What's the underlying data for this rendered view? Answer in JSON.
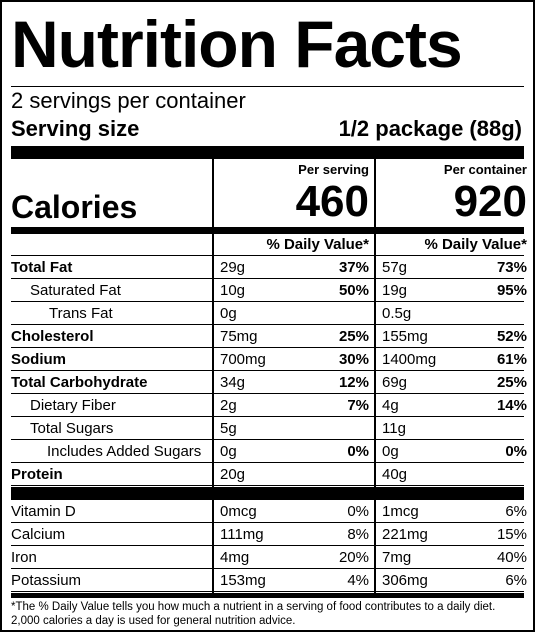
{
  "title": "Nutrition Facts",
  "servings_per_container": "2 servings per container",
  "serving_size_label": "Serving size",
  "serving_size_value": "1/2 package (88g)",
  "column_headers": {
    "per_serving": "Per serving",
    "per_container": "Per container"
  },
  "calories": {
    "label": "Calories",
    "per_serving": "460",
    "per_container": "920"
  },
  "daily_value_header": "% Daily Value*",
  "nutrients": [
    {
      "name": "Total Fat",
      "bold": true,
      "indent": 0,
      "serving_amount": "29g",
      "serving_dv": "37%",
      "container_amount": "57g",
      "container_dv": "73%"
    },
    {
      "name": "Saturated Fat",
      "bold": false,
      "indent": 1,
      "serving_amount": "10g",
      "serving_dv": "50%",
      "container_amount": "19g",
      "container_dv": "95%"
    },
    {
      "name": "Trans Fat",
      "bold": false,
      "indent": 2,
      "serving_amount": "0g",
      "serving_dv": "",
      "container_amount": "0.5g",
      "container_dv": ""
    },
    {
      "name": "Cholesterol",
      "bold": true,
      "indent": 0,
      "serving_amount": "75mg",
      "serving_dv": "25%",
      "container_amount": "155mg",
      "container_dv": "52%"
    },
    {
      "name": "Sodium",
      "bold": true,
      "indent": 0,
      "serving_amount": "700mg",
      "serving_dv": "30%",
      "container_amount": "1400mg",
      "container_dv": "61%"
    },
    {
      "name": "Total Carbohydrate",
      "bold": true,
      "indent": 0,
      "serving_amount": "34g",
      "serving_dv": "12%",
      "container_amount": "69g",
      "container_dv": "25%"
    },
    {
      "name": "Dietary Fiber",
      "bold": false,
      "indent": 1,
      "serving_amount": "2g",
      "serving_dv": "7%",
      "container_amount": "4g",
      "container_dv": "14%"
    },
    {
      "name": "Total Sugars",
      "bold": false,
      "indent": 1,
      "serving_amount": "5g",
      "serving_dv": "",
      "container_amount": "11g",
      "container_dv": ""
    },
    {
      "name": "Includes Added Sugars",
      "bold": false,
      "indent": 3,
      "serving_amount": "0g",
      "serving_dv": "0%",
      "container_amount": "0g",
      "container_dv": "0%"
    },
    {
      "name": "Protein",
      "bold": true,
      "indent": 0,
      "serving_amount": "20g",
      "serving_dv": "",
      "container_amount": "40g",
      "container_dv": ""
    }
  ],
  "vitamins": [
    {
      "name": "Vitamin D",
      "serving_amount": "0mcg",
      "serving_dv": "0%",
      "container_amount": "1mcg",
      "container_dv": "6%"
    },
    {
      "name": "Calcium",
      "serving_amount": "111mg",
      "serving_dv": "8%",
      "container_amount": "221mg",
      "container_dv": "15%"
    },
    {
      "name": "Iron",
      "serving_amount": "4mg",
      "serving_dv": "20%",
      "container_amount": "7mg",
      "container_dv": "40%"
    },
    {
      "name": "Potassium",
      "serving_amount": "153mg",
      "serving_dv": "4%",
      "container_amount": "306mg",
      "container_dv": "6%"
    }
  ],
  "footnote_line1": "*The % Daily Value tells you how much a nutrient in a serving of food contributes to a daily diet.",
  "footnote_line2": "2,000 calories a day is used for general nutrition advice."
}
